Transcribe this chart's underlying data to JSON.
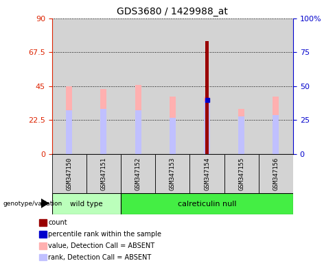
{
  "title": "GDS3680 / 1429988_at",
  "samples": [
    "GSM347150",
    "GSM347151",
    "GSM347152",
    "GSM347153",
    "GSM347154",
    "GSM347155",
    "GSM347156"
  ],
  "pink_bar_heights": [
    45.0,
    43.0,
    46.0,
    38.0,
    38.0,
    30.0,
    38.0
  ],
  "rank_segments": [
    29.0,
    30.0,
    29.0,
    24.0,
    35.0,
    25.0,
    26.0
  ],
  "count_bar_sample_idx": 4,
  "count_bar_height": 75.0,
  "percentile_rank_value": 36.0,
  "percentile_rank_sample_idx": 4,
  "ylim_left": [
    0,
    90
  ],
  "ylim_right": [
    0,
    100
  ],
  "left_yticks": [
    0,
    22.5,
    45,
    67.5,
    90
  ],
  "right_yticks": [
    0,
    25,
    50,
    75,
    100
  ],
  "right_yticklabels": [
    "0",
    "25",
    "50",
    "75",
    "100%"
  ],
  "left_yticklabels": [
    "0",
    "22.5",
    "45",
    "67.5",
    "90"
  ],
  "left_yaxis_color": "#dd2200",
  "right_yaxis_color": "#0000cc",
  "pink_bar_color": "#ffb0b0",
  "rank_segment_color": "#c0c0ff",
  "count_bar_color": "#990000",
  "percentile_rank_color": "#0000cc",
  "wild_type_label": "wild type",
  "calreticulin_label": "calreticulin null",
  "wild_type_bg": "#bbffbb",
  "calreticulin_bg": "#44ee44",
  "legend_items": [
    {
      "label": "count",
      "color": "#990000"
    },
    {
      "label": "percentile rank within the sample",
      "color": "#0000cc"
    },
    {
      "label": "value, Detection Call = ABSENT",
      "color": "#ffb0b0"
    },
    {
      "label": "rank, Detection Call = ABSENT",
      "color": "#c0c0ff"
    }
  ],
  "bar_width": 0.18,
  "count_bar_width": 0.1,
  "sample_column_bg": "#d3d3d3",
  "plot_bg": "#ffffff",
  "genotype_label": "genotype/variation",
  "figsize": [
    4.88,
    3.84
  ],
  "dpi": 100
}
